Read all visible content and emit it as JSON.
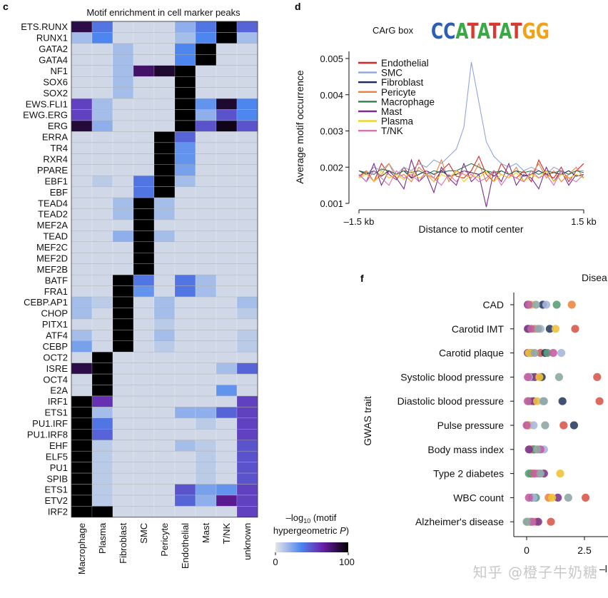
{
  "chart_data": [
    {
      "type": "heatmap",
      "panel": "c",
      "title": "Motif enrichment in cell marker peaks",
      "rows": [
        "ETS.RUNX",
        "RUNX1",
        "GATA2",
        "GATA4",
        "NF1",
        "SOX6",
        "SOX2",
        "EWS.FLI1",
        "EWG.ERG",
        "ERG",
        "ERRA",
        "TR4",
        "RXR4",
        "PPARE",
        "EBF1",
        "EBF",
        "TEAD4",
        "TEAD2",
        "MEF2A",
        "TEAD",
        "MEF2C",
        "MEF2D",
        "MEF2B",
        "BATF",
        "FRA1",
        "CEBP.AP1",
        "CHOP",
        "PITX1",
        "ATF4",
        "CEBP",
        "OCT2",
        "ISRE",
        "OCT4",
        "E2A",
        "IRF1",
        "ETS1",
        "PU1.IRF",
        "PU1.IRF8",
        "EHF",
        "ELF5",
        "PU1",
        "SPIB",
        "ETS1",
        "ETV2",
        "IRF2"
      ],
      "columns": [
        "Macrophage",
        "Plasma",
        "Fibroblast",
        "SMC",
        "Pericyte",
        "Endothelial",
        "Mast",
        "T/NK",
        "unknown"
      ],
      "values": [
        [
          85,
          40,
          5,
          5,
          5,
          20,
          40,
          100,
          45
        ],
        [
          15,
          35,
          5,
          5,
          5,
          15,
          35,
          100,
          15
        ],
        [
          5,
          5,
          15,
          5,
          5,
          35,
          100,
          5,
          5
        ],
        [
          5,
          5,
          15,
          5,
          5,
          35,
          100,
          5,
          5
        ],
        [
          5,
          5,
          15,
          78,
          90,
          100,
          5,
          5,
          5
        ],
        [
          5,
          5,
          15,
          5,
          5,
          100,
          5,
          5,
          5
        ],
        [
          5,
          5,
          15,
          5,
          5,
          100,
          5,
          5,
          5
        ],
        [
          55,
          15,
          5,
          5,
          5,
          100,
          30,
          90,
          35
        ],
        [
          55,
          15,
          5,
          5,
          5,
          100,
          20,
          50,
          35
        ],
        [
          88,
          20,
          5,
          5,
          5,
          100,
          50,
          95,
          50
        ],
        [
          5,
          5,
          5,
          5,
          100,
          45,
          5,
          5,
          5
        ],
        [
          5,
          5,
          5,
          5,
          100,
          30,
          5,
          5,
          5
        ],
        [
          5,
          5,
          5,
          5,
          100,
          30,
          5,
          5,
          5
        ],
        [
          5,
          5,
          5,
          5,
          100,
          25,
          5,
          5,
          5
        ],
        [
          5,
          10,
          5,
          40,
          100,
          15,
          5,
          5,
          5
        ],
        [
          5,
          5,
          5,
          40,
          100,
          5,
          5,
          5,
          5
        ],
        [
          5,
          5,
          15,
          100,
          15,
          5,
          5,
          5,
          5
        ],
        [
          5,
          5,
          15,
          100,
          15,
          5,
          5,
          5,
          5
        ],
        [
          5,
          5,
          5,
          100,
          5,
          5,
          5,
          5,
          5
        ],
        [
          5,
          5,
          20,
          100,
          15,
          5,
          5,
          5,
          5
        ],
        [
          5,
          5,
          5,
          100,
          5,
          5,
          5,
          5,
          5
        ],
        [
          5,
          5,
          5,
          100,
          5,
          5,
          5,
          5,
          5
        ],
        [
          5,
          5,
          5,
          100,
          5,
          5,
          5,
          5,
          5
        ],
        [
          5,
          5,
          100,
          40,
          5,
          40,
          15,
          5,
          5
        ],
        [
          5,
          5,
          100,
          30,
          5,
          40,
          15,
          5,
          5
        ],
        [
          15,
          10,
          100,
          5,
          15,
          5,
          5,
          5,
          15
        ],
        [
          15,
          5,
          100,
          5,
          15,
          5,
          5,
          5,
          10
        ],
        [
          5,
          5,
          100,
          5,
          10,
          5,
          5,
          5,
          5
        ],
        [
          15,
          5,
          100,
          5,
          15,
          5,
          5,
          5,
          10
        ],
        [
          25,
          5,
          100,
          5,
          10,
          5,
          5,
          5,
          10
        ],
        [
          5,
          100,
          5,
          5,
          5,
          5,
          5,
          5,
          5
        ],
        [
          85,
          100,
          5,
          5,
          5,
          5,
          5,
          15,
          45
        ],
        [
          5,
          100,
          5,
          5,
          5,
          5,
          5,
          5,
          5
        ],
        [
          5,
          100,
          5,
          5,
          5,
          5,
          5,
          30,
          5
        ],
        [
          100,
          60,
          5,
          5,
          5,
          5,
          5,
          5,
          55
        ],
        [
          100,
          15,
          5,
          5,
          5,
          20,
          20,
          45,
          55
        ],
        [
          100,
          40,
          5,
          5,
          5,
          5,
          10,
          5,
          55
        ],
        [
          100,
          45,
          5,
          5,
          5,
          5,
          5,
          5,
          55
        ],
        [
          100,
          10,
          5,
          5,
          5,
          15,
          10,
          5,
          50
        ],
        [
          100,
          10,
          5,
          5,
          5,
          5,
          10,
          5,
          50
        ],
        [
          100,
          10,
          5,
          5,
          5,
          5,
          10,
          5,
          50
        ],
        [
          100,
          10,
          5,
          5,
          5,
          5,
          10,
          5,
          50
        ],
        [
          100,
          10,
          5,
          5,
          5,
          50,
          25,
          30,
          55
        ],
        [
          100,
          10,
          5,
          5,
          5,
          45,
          20,
          70,
          55
        ],
        [
          100,
          100,
          5,
          5,
          5,
          5,
          5,
          5,
          55
        ]
      ],
      "colorbar": {
        "label_line1": "–log",
        "label_sub": "10",
        "label_line1_rest": " (motif",
        "label_line2": "hypergeometric ",
        "label_line2_italic": "P",
        "label_close": ")",
        "min_label": "0",
        "max_label": "100",
        "range": [
          0,
          100
        ]
      }
    },
    {
      "type": "line",
      "panel": "d",
      "title": "CArG box",
      "logo_text": "CCATATATGG",
      "xlabel": "Distance to motif center",
      "ylabel": "Average motif occurrence",
      "xticks": [
        "–1.5 kb",
        "1.5 kb"
      ],
      "yticks": [
        "0.001",
        "0.002",
        "0.003",
        "0.004",
        "0.005"
      ],
      "ylim": [
        0.001,
        0.005
      ],
      "series": [
        {
          "name": "Endothelial",
          "color": "#d62728",
          "values": [
            0.00175,
            0.0019,
            0.0016,
            0.0021,
            0.0018,
            0.00165,
            0.002,
            0.0017,
            0.0022,
            0.0018,
            0.0016,
            0.0019,
            0.0021,
            0.00175,
            0.0017,
            0.0019,
            0.0023,
            0.0018,
            0.0016,
            0.0021,
            0.0018,
            0.0017,
            0.0019,
            0.0016,
            0.0022,
            0.0018,
            0.0017,
            0.002,
            0.0016,
            0.0019,
            0.0021
          ]
        },
        {
          "name": "SMC",
          "color": "#8fa6dc",
          "values": [
            0.0019,
            0.0018,
            0.002,
            0.0019,
            0.0021,
            0.0018,
            0.002,
            0.0019,
            0.0021,
            0.002,
            0.0022,
            0.0021,
            0.0023,
            0.0025,
            0.0031,
            0.0049,
            0.0038,
            0.0027,
            0.0023,
            0.0021,
            0.002,
            0.0021,
            0.0019,
            0.002,
            0.0019,
            0.0018,
            0.002,
            0.0019,
            0.0018,
            0.0019,
            0.0019
          ]
        },
        {
          "name": "Fibroblast",
          "color": "#1b2a5a",
          "values": [
            0.0019,
            0.0018,
            0.0019,
            0.00175,
            0.0019,
            0.0018,
            0.0019,
            0.0017,
            0.0018,
            0.0019,
            0.0018,
            0.0019,
            0.00175,
            0.0018,
            0.0019,
            0.00185,
            0.0018,
            0.0019,
            0.00175,
            0.0019,
            0.0018,
            0.0019,
            0.00175,
            0.0018,
            0.0019,
            0.0018,
            0.00185,
            0.0018,
            0.0019,
            0.00175,
            0.0018
          ]
        },
        {
          "name": "Pericyte",
          "color": "#f07f3c",
          "values": [
            0.0017,
            0.0019,
            0.0016,
            0.0018,
            0.0021,
            0.0017,
            0.0018,
            0.0016,
            0.002,
            0.0018,
            0.0017,
            0.0022,
            0.0016,
            0.0019,
            0.0018,
            0.0017,
            0.0021,
            0.0016,
            0.0019,
            0.0018,
            0.0017,
            0.002,
            0.0016,
            0.0018,
            0.0021,
            0.0017,
            0.0019,
            0.0016,
            0.0018,
            0.002,
            0.0017
          ]
        },
        {
          "name": "Macrophage",
          "color": "#2e7d4f",
          "values": [
            0.0019,
            0.00185,
            0.0018,
            0.00195,
            0.0019,
            0.0018,
            0.0019,
            0.00185,
            0.0019,
            0.0018,
            0.0019,
            0.00185,
            0.0019,
            0.0019,
            0.002,
            0.0021,
            0.002,
            0.0019,
            0.00185,
            0.0019,
            0.0018,
            0.0019,
            0.00185,
            0.0019,
            0.0018,
            0.0019,
            0.00185,
            0.0019,
            0.0018,
            0.0019,
            0.00185
          ]
        },
        {
          "name": "Mast",
          "color": "#7b2d8e",
          "values": [
            0.0018,
            0.0016,
            0.0021,
            0.0015,
            0.0019,
            0.0017,
            0.0014,
            0.0022,
            0.0016,
            0.0018,
            0.0013,
            0.002,
            0.0017,
            0.0015,
            0.0021,
            0.0016,
            0.0018,
            0.0009,
            0.0019,
            0.0016,
            0.0021,
            0.0015,
            0.0018,
            0.0017,
            0.0014,
            0.002,
            0.0016,
            0.0019,
            0.0015,
            0.0018,
            0.0017
          ]
        },
        {
          "name": "Plasma",
          "color": "#f2d21b",
          "values": [
            0.0017,
            0.0018,
            0.0016,
            0.0019,
            0.0017,
            0.0018,
            0.00165,
            0.0019,
            0.0017,
            0.0018,
            0.0016,
            0.0018,
            0.0017,
            0.0019,
            0.0016,
            0.0018,
            0.0017,
            0.0019,
            0.0016,
            0.0018,
            0.0017,
            0.00185,
            0.0016,
            0.0018,
            0.0017,
            0.0019,
            0.0016,
            0.0018,
            0.0017,
            0.0018,
            0.0017
          ]
        },
        {
          "name": "T/NK",
          "color": "#d772b4",
          "values": [
            0.0018,
            0.0016,
            0.0019,
            0.0017,
            0.0015,
            0.0019,
            0.0017,
            0.0018,
            0.0016,
            0.0019,
            0.0017,
            0.0015,
            0.0018,
            0.0016,
            0.0019,
            0.0018,
            0.0016,
            0.0017,
            0.0019,
            0.0015,
            0.0018,
            0.0017,
            0.0016,
            0.0019,
            0.0017,
            0.0018,
            0.0015,
            0.0019,
            0.0017,
            0.0016,
            0.0018
          ]
        }
      ]
    },
    {
      "type": "scatter",
      "panel": "f",
      "title": "Disea",
      "ylabel": "GWAS trait",
      "xticks": [
        "0",
        "2.5"
      ],
      "xtick_values": [
        0,
        2.5
      ],
      "xlim": [
        -0.2,
        3.5
      ],
      "xlabel_fragment": "–l",
      "traits": [
        "CAD",
        "Carotid IMT",
        "Carotid plaque",
        "Systolic blood pressure",
        "Diastolic blood pressure",
        "Pulse pressure",
        "Body mass index",
        "Type 2 diabetes",
        "WBC count",
        "Alzheimer's disease"
      ],
      "series": [
        {
          "name": "Endothelial",
          "color": "#d95a4e",
          "values": [
            3.5,
            2.1,
            0.6,
            3.05,
            3.15,
            1.6,
            0.2,
            0.5,
            2.55,
            1.05
          ]
        },
        {
          "name": "Fibroblast",
          "color": "#2e3f66",
          "values": [
            0.7,
            1.0,
            0.8,
            0.65,
            1.55,
            2.05,
            0.3,
            0.2,
            0.25,
            0.15
          ]
        },
        {
          "name": "Pericyte",
          "color": "#ec8744",
          "values": [
            1.95,
            0.35,
            0.2,
            0.1,
            0.2,
            0.1,
            0.15,
            0.25,
            0.95,
            0.4
          ]
        },
        {
          "name": "Macrophage",
          "color": "#5c9e7a",
          "values": [
            1.3,
            0.1,
            0.9,
            0.2,
            0.1,
            0.05,
            0.35,
            0.1,
            0.4,
            0.05
          ]
        },
        {
          "name": "Mast",
          "color": "#7c3a8c",
          "values": [
            0.05,
            0.05,
            0.05,
            0.35,
            0.3,
            0.05,
            0.1,
            0.75,
            1.35,
            0.5
          ]
        },
        {
          "name": "Plasma",
          "color": "#f0c23a",
          "values": [
            0.2,
            1.25,
            0.1,
            0.55,
            0.45,
            0.1,
            0.5,
            1.45,
            1.1,
            0.15
          ]
        },
        {
          "name": "SMC",
          "color": "#a9b6de",
          "values": [
            0.85,
            0.6,
            1.5,
            0.1,
            0.7,
            0.3,
            0.75,
            0.55,
            0.3,
            0.2
          ]
        },
        {
          "name": "T/NK",
          "color": "#c55fa1",
          "values": [
            0.1,
            0.2,
            1.15,
            0.05,
            0.05,
            0.0,
            0.6,
            0.35,
            0.1,
            0.25
          ]
        },
        {
          "name": "unknown",
          "color": "#8fa7a5",
          "values": [
            0.4,
            0.5,
            0.35,
            1.4,
            0.75,
            0.8,
            0.45,
            0.6,
            1.8,
            0.0
          ]
        }
      ]
    }
  ],
  "panel_letters": {
    "c": "c",
    "d": "d",
    "f": "f"
  },
  "watermark": "知乎 @橙子牛奶糖"
}
